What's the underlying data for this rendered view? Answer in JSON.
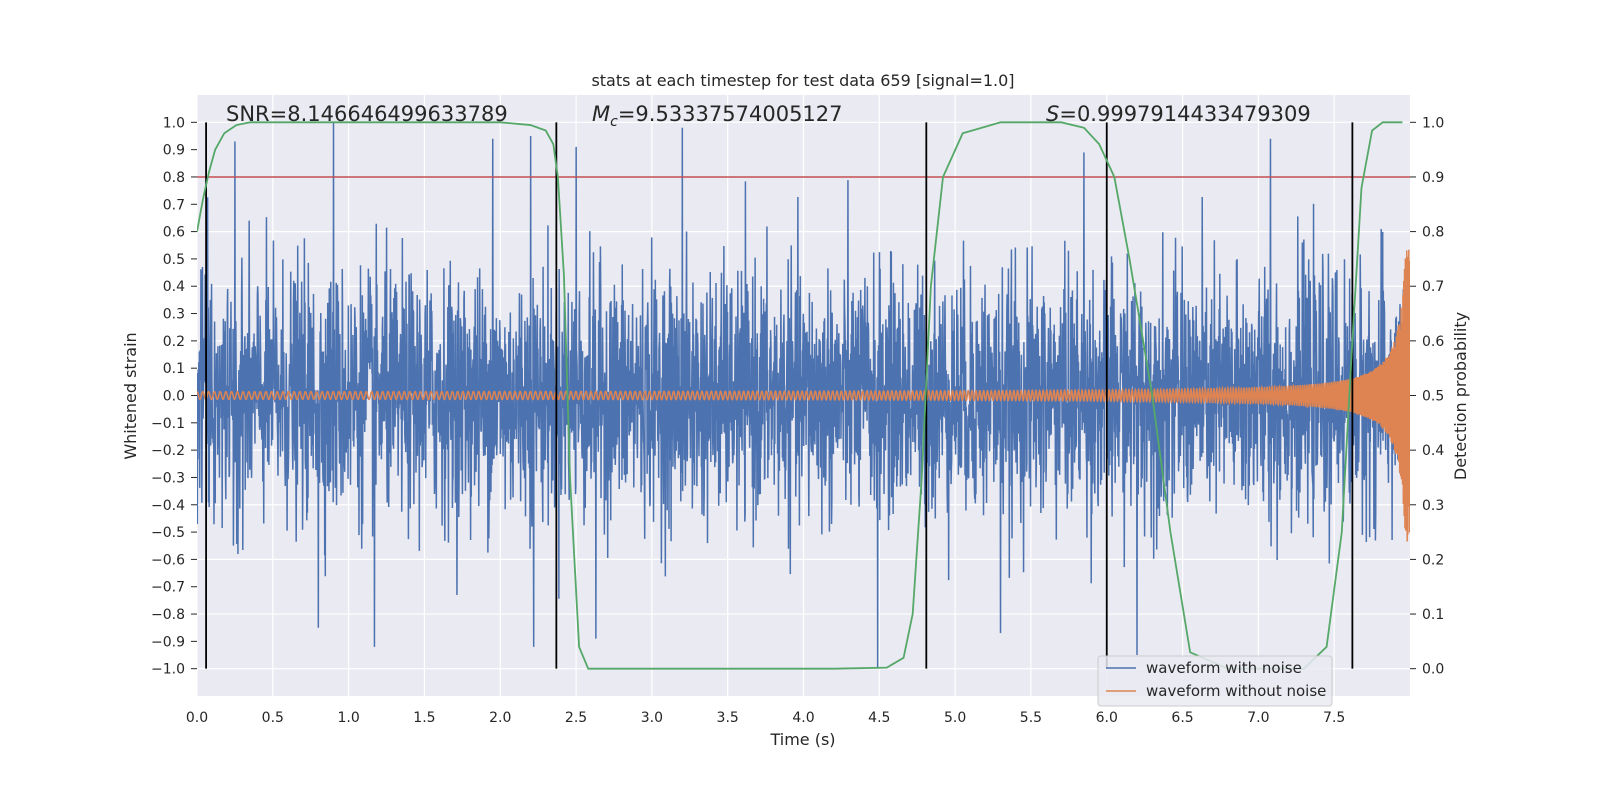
{
  "chart_data": {
    "type": "line",
    "title": "stats at each timestep for test data 659 [signal=1.0]",
    "xlabel": "Time (s)",
    "ylabel": "Whitened strain",
    "y2label": "Detection probability",
    "xlim": [
      0,
      8
    ],
    "ylim": [
      -1.1,
      1.1
    ],
    "y2lim": [
      -0.05,
      1.05
    ],
    "x_ticks": [
      "0.0",
      "0.5",
      "1.0",
      "1.5",
      "2.0",
      "2.5",
      "3.0",
      "3.5",
      "4.0",
      "4.5",
      "5.0",
      "5.5",
      "6.0",
      "6.5",
      "7.0",
      "7.5"
    ],
    "y_ticks": [
      "1.0",
      "0.9",
      "0.8",
      "0.7",
      "0.6",
      "0.5",
      "0.4",
      "0.3",
      "0.2",
      "0.1",
      "0.0",
      "−0.1",
      "−0.2",
      "−0.3",
      "−0.4",
      "−0.5",
      "−0.6",
      "−0.7",
      "−0.8",
      "−0.9",
      "−1.0"
    ],
    "y2_ticks": [
      "1.0",
      "0.9",
      "0.8",
      "0.7",
      "0.6",
      "0.5",
      "0.4",
      "0.3",
      "0.2",
      "0.1",
      "0.0"
    ],
    "grid": true,
    "legend_position": "lower-right",
    "annotations": {
      "snr": "SNR=8.146646499633789",
      "mc": "=9.53337574005127",
      "mc_symbol": "M",
      "mc_subscript": "c",
      "s": "=0.9997914433479309",
      "s_symbol": "S"
    },
    "threshold": {
      "value": 0.8,
      "axis": "left",
      "color": "#c44e52"
    },
    "vertical_lines": [
      0.06,
      2.37,
      4.81,
      6.0,
      7.62
    ],
    "series": [
      {
        "name": "waveform with noise",
        "color": "#4c72b0",
        "axis": "left",
        "kind": "noise",
        "x_range": [
          0,
          8
        ],
        "envelope": 0.45,
        "spikes": [
          {
            "x": 0.9,
            "y": 1.0
          },
          {
            "x": 0.25,
            "y": 0.93
          },
          {
            "x": 1.95,
            "y": 0.94
          },
          {
            "x": 2.2,
            "y": 0.95
          },
          {
            "x": 2.5,
            "y": 0.91
          },
          {
            "x": 3.2,
            "y": 0.98
          },
          {
            "x": 5.85,
            "y": 0.89
          },
          {
            "x": 7.08,
            "y": 0.94
          },
          {
            "x": 0.8,
            "y": -0.85
          },
          {
            "x": 1.17,
            "y": -0.92
          },
          {
            "x": 2.22,
            "y": -0.92
          },
          {
            "x": 2.63,
            "y": -0.89
          },
          {
            "x": 4.49,
            "y": -1.0
          },
          {
            "x": 6.2,
            "y": -0.95
          },
          {
            "x": 5.3,
            "y": -0.87
          }
        ]
      },
      {
        "name": "waveform without noise",
        "color": "#dd8452",
        "axis": "left",
        "kind": "chirp",
        "x_range": [
          0,
          8
        ],
        "amplitude_start": 0.012,
        "amplitude_end": 0.55
      },
      {
        "name": "detection probability",
        "color": "#55a868",
        "axis": "right",
        "kind": "line",
        "x": [
          0.0,
          0.04,
          0.08,
          0.12,
          0.18,
          0.26,
          0.35,
          0.5,
          0.8,
          1.5,
          2.0,
          2.2,
          2.3,
          2.35,
          2.38,
          2.42,
          2.46,
          2.52,
          2.58,
          2.8,
          3.5,
          4.2,
          4.55,
          4.66,
          4.72,
          4.78,
          4.84,
          4.92,
          5.05,
          5.3,
          5.7,
          5.85,
          5.95,
          6.05,
          6.15,
          6.3,
          6.42,
          6.55,
          6.8,
          7.05,
          7.3,
          7.45,
          7.55,
          7.62,
          7.68,
          7.75,
          7.82,
          7.95
        ],
        "y": [
          0.8,
          0.86,
          0.91,
          0.95,
          0.98,
          0.995,
          1.0,
          1.0,
          1.0,
          1.0,
          1.0,
          0.995,
          0.985,
          0.96,
          0.9,
          0.72,
          0.35,
          0.04,
          0.0,
          0.0,
          0.0,
          0.0,
          0.002,
          0.02,
          0.1,
          0.35,
          0.7,
          0.9,
          0.98,
          1.0,
          1.0,
          0.99,
          0.96,
          0.9,
          0.75,
          0.5,
          0.25,
          0.03,
          0.0,
          0.0,
          0.0,
          0.04,
          0.25,
          0.6,
          0.88,
          0.985,
          1.0,
          1.0
        ]
      }
    ]
  }
}
